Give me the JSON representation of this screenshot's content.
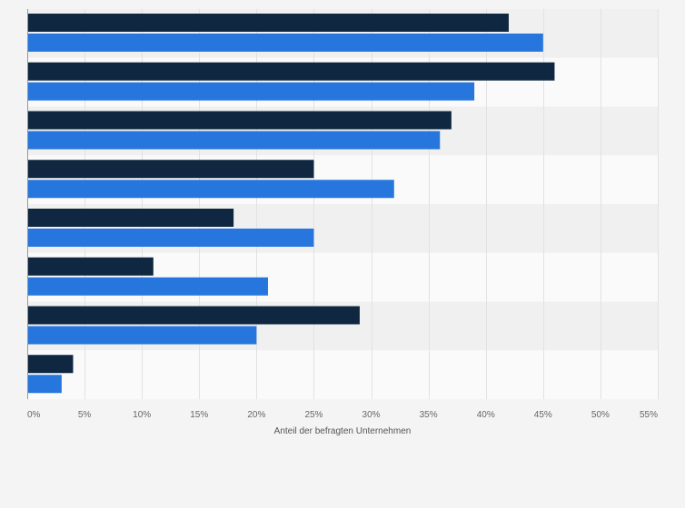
{
  "chart_data": {
    "type": "bar",
    "orientation": "horizontal",
    "xlabel": "Anteil der befragten Unternehmen",
    "xlim": [
      0,
      55
    ],
    "x_ticks": [
      0,
      5,
      10,
      15,
      20,
      25,
      30,
      35,
      40,
      45,
      50,
      55
    ],
    "x_tick_labels": [
      "0%",
      "5%",
      "10%",
      "15%",
      "20%",
      "25%",
      "30%",
      "35%",
      "40%",
      "45%",
      "50%",
      "55%"
    ],
    "category_count": 8,
    "grid": true,
    "legend": "none",
    "series": [
      {
        "values": [
          42,
          46,
          37,
          25,
          18,
          11,
          29,
          4
        ],
        "color": "#0f2740"
      },
      {
        "values": [
          45,
          39,
          36,
          32,
          25,
          21,
          20,
          3
        ],
        "color": "#2776dd"
      }
    ],
    "band_colors": [
      "#f0f0f0",
      "#fafafa"
    ],
    "grid_color": "#e2e2e2"
  }
}
